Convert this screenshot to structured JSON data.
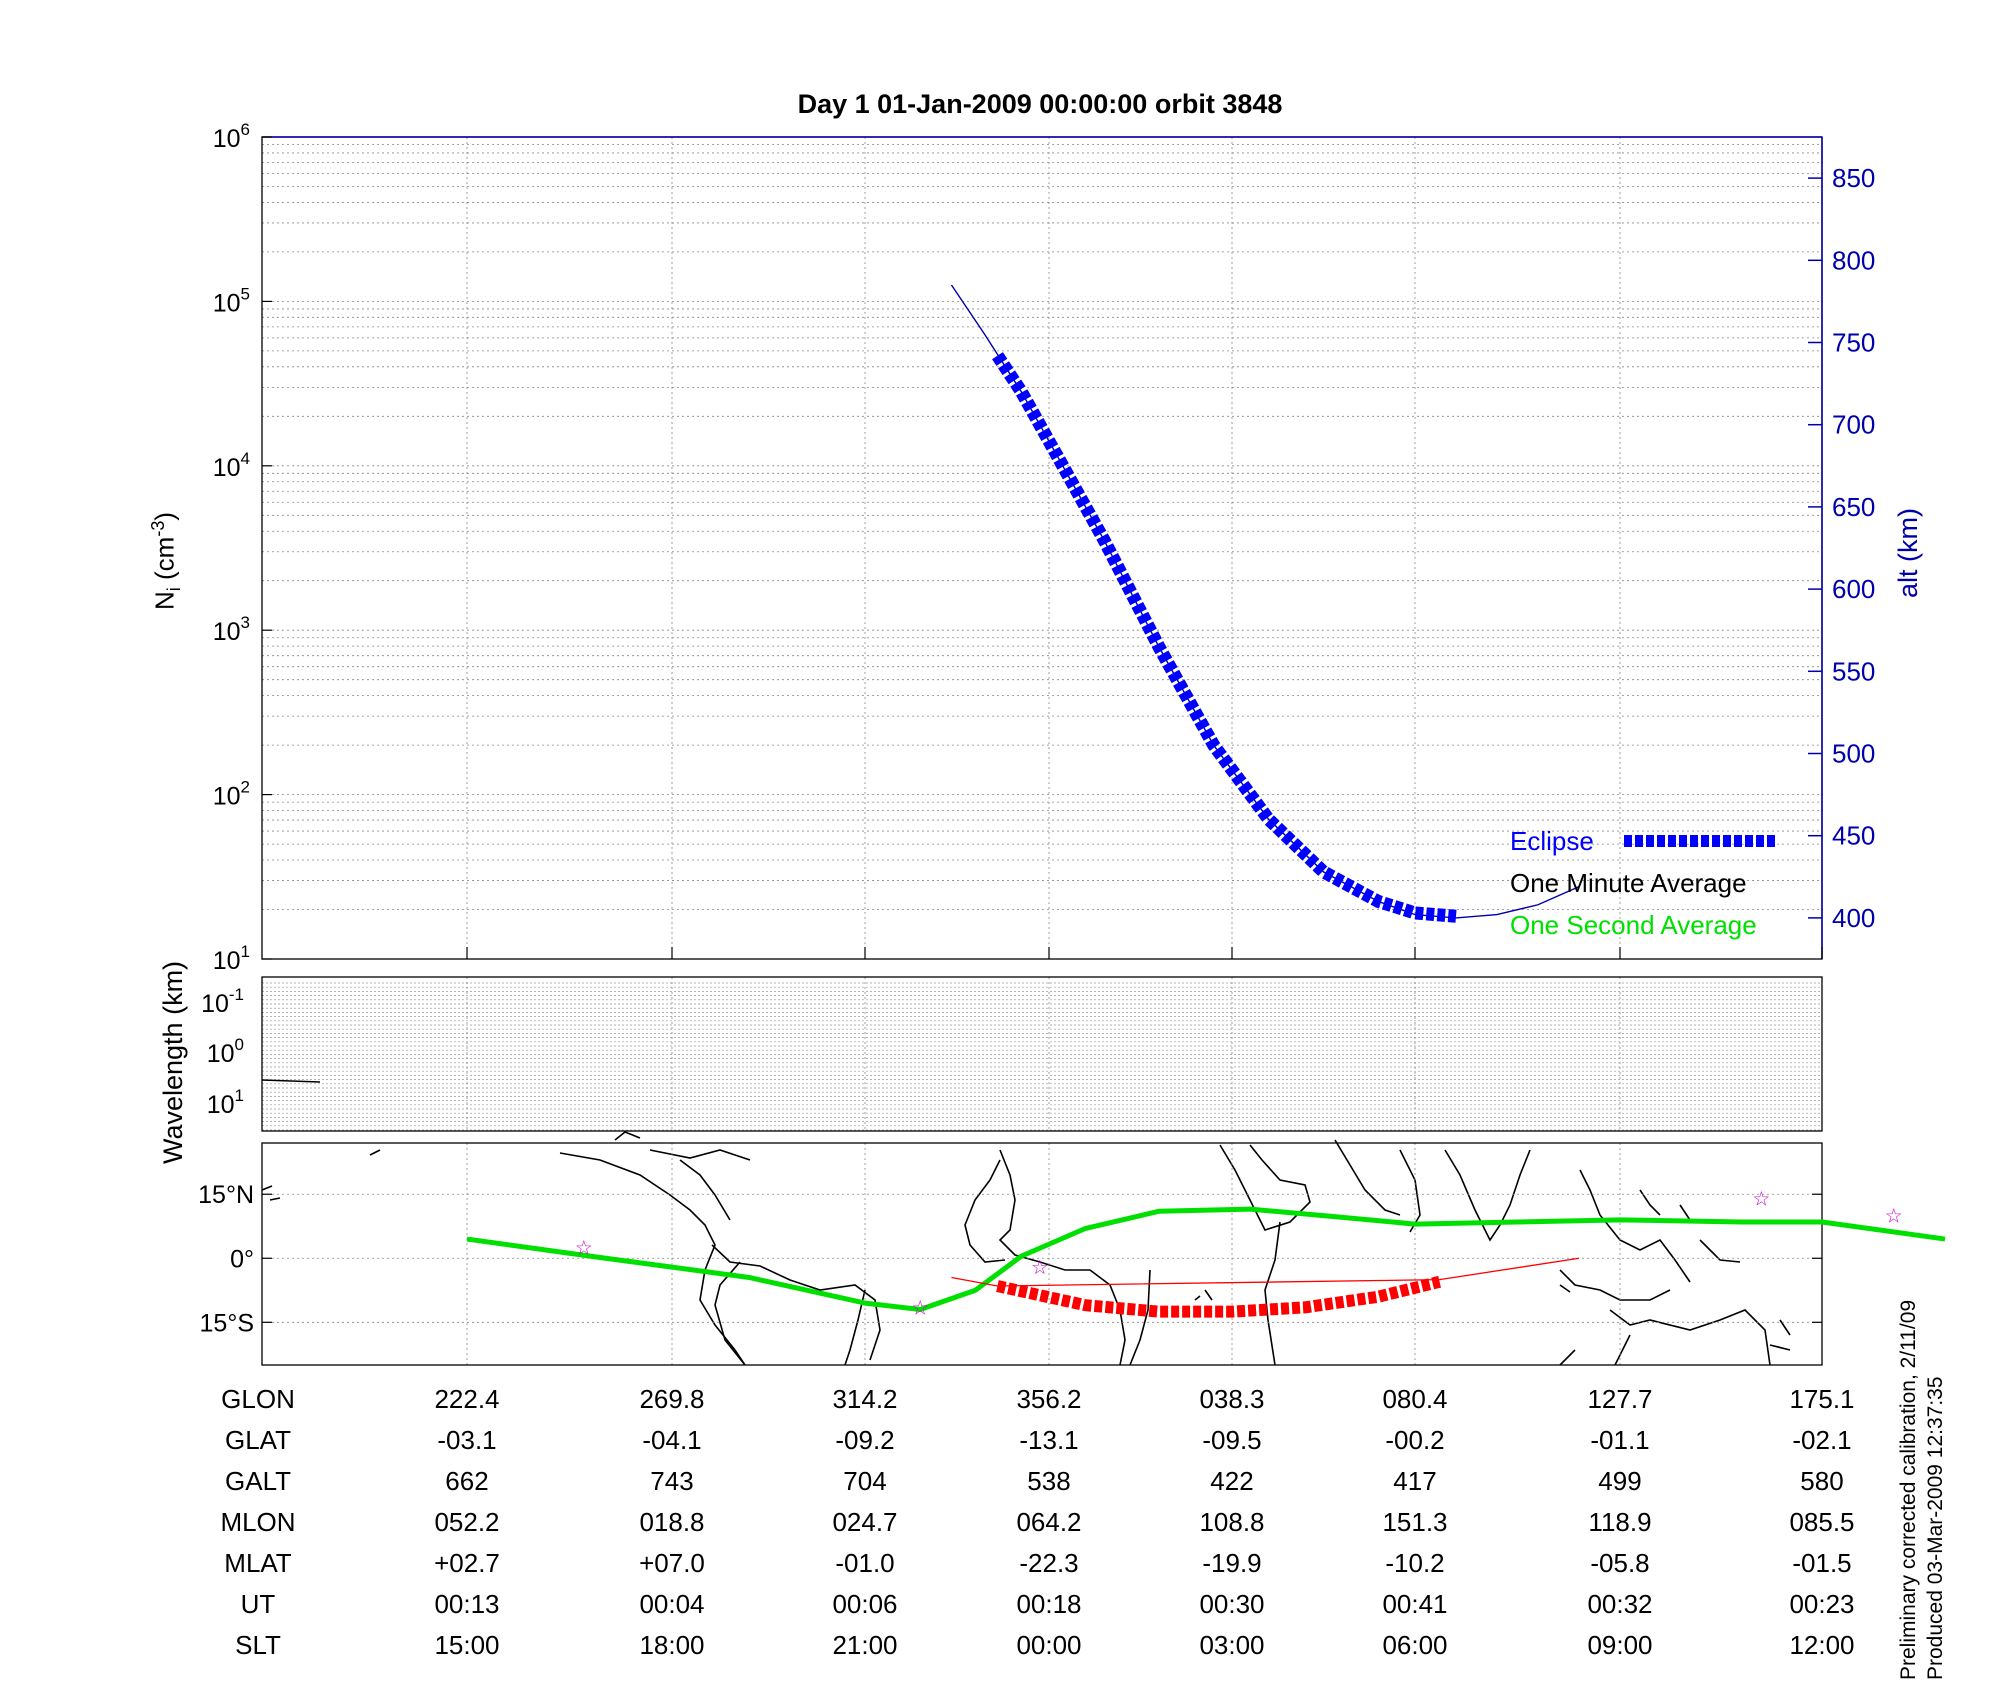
{
  "title": "Day 1  01-Jan-2009 00:00:00   orbit 3848",
  "colors": {
    "eclipse": "#0000ff",
    "one_minute": "#000000",
    "one_second": "#00e000",
    "red_track": "#ff0000",
    "axis_right": "#0000aa"
  },
  "chart_data": [
    {
      "type": "line",
      "panel": "density",
      "ylabel_left_main": "N",
      "ylabel_left_sub": "i",
      "ylabel_left_units_a": " (cm",
      "ylabel_left_units_b": "-3",
      "ylabel_left_units_c": ")",
      "ylabel_right": "alt (km)",
      "yscale": "log",
      "ylim_left": [
        10,
        1000000
      ],
      "yticks_left": [
        {
          "base": "10",
          "exp": "1"
        },
        {
          "base": "10",
          "exp": "2"
        },
        {
          "base": "10",
          "exp": "3"
        },
        {
          "base": "10",
          "exp": "4"
        },
        {
          "base": "10",
          "exp": "5"
        },
        {
          "base": "10",
          "exp": "6"
        }
      ],
      "ylim_right": [
        375,
        875
      ],
      "yticks_right": [
        "400",
        "450",
        "500",
        "550",
        "600",
        "650",
        "700",
        "750",
        "800",
        "850"
      ],
      "x_slt_hours": [
        15,
        18,
        21,
        0,
        3,
        6,
        9,
        12
      ],
      "grid": true,
      "legend_position": "bottom-right",
      "legend": [
        "Eclipse",
        "One Minute Average",
        "One Second Average"
      ],
      "series": [
        {
          "name": "alt (km)",
          "style": "thin blue line",
          "x_pos": [
            2.47,
            2.65,
            2.85,
            3.05,
            3.3,
            3.6,
            3.9,
            4.2,
            4.5,
            4.8,
            5.0,
            5.2,
            5.4,
            5.6,
            5.8
          ],
          "values": [
            785,
            755,
            720,
            680,
            630,
            565,
            505,
            460,
            428,
            410,
            402,
            400,
            402,
            408,
            419
          ]
        },
        {
          "name": "Eclipse",
          "style": "blue dashed thick",
          "x_pos": [
            2.72,
            2.85,
            3.05,
            3.3,
            3.6,
            3.9,
            4.2,
            4.5,
            4.8,
            5.0,
            5.2
          ],
          "values": [
            742,
            720,
            680,
            630,
            565,
            505,
            460,
            428,
            410,
            403,
            401
          ]
        }
      ]
    },
    {
      "type": "heatmap",
      "panel": "wavelength",
      "ylabel": "Wavelength (km)",
      "yticks": [
        {
          "base": "10",
          "exp": "-1"
        },
        {
          "base": "10",
          "exp": "0"
        },
        {
          "base": "10",
          "exp": "1"
        }
      ],
      "values": []
    },
    {
      "type": "line",
      "panel": "map",
      "yticks": [
        "15°N",
        "0°",
        "15°S"
      ],
      "ylim_deg": [
        -25,
        27
      ],
      "series": [
        {
          "name": "One Second Average",
          "style": "green track",
          "x_pos": [
            0,
            0.6,
            1.4,
            2.0,
            2.3,
            2.6,
            2.85,
            3.2,
            3.6,
            4.1,
            4.5,
            5.0,
            5.5,
            6.0,
            6.6,
            7.0,
            7.6
          ],
          "values": [
            4.5,
            0.5,
            -4.5,
            -10.5,
            -12,
            -7.5,
            0.5,
            7,
            11,
            11.5,
            10,
            8,
            8.5,
            9,
            8.5,
            8.5,
            4.5
          ]
        },
        {
          "name": "red thin",
          "style": "thin red line",
          "x_pos": [
            2.47,
            2.72,
            5.12,
            5.8
          ],
          "values": [
            -4.5,
            -6.5,
            -5,
            0
          ]
        },
        {
          "name": "Eclipse track",
          "style": "red dashed thick",
          "x_pos": [
            2.72,
            3.2,
            3.6,
            4.0,
            4.4,
            4.8,
            5.12
          ],
          "values": [
            -6.5,
            -11,
            -12.5,
            -12.5,
            -11.5,
            -9,
            -5.5
          ]
        }
      ],
      "stars": [
        {
          "x_pos": 0.57,
          "lat": 2.5
        },
        {
          "x_pos": 2.3,
          "lat": -11.5
        },
        {
          "x_pos": 2.95,
          "lat": -2
        },
        {
          "x_pos": 6.7,
          "lat": 14
        },
        {
          "x_pos": 7.35,
          "lat": 10
        }
      ]
    },
    {
      "type": "table",
      "panel": "ephemeris",
      "rows": [
        {
          "label": "GLON",
          "values": [
            "222.4",
            "269.8",
            "314.2",
            "356.2",
            "038.3",
            "080.4",
            "127.7",
            "175.1"
          ]
        },
        {
          "label": "GLAT",
          "values": [
            "-03.1",
            "-04.1",
            "-09.2",
            "-13.1",
            "-09.5",
            "-00.2",
            "-01.1",
            "-02.1"
          ]
        },
        {
          "label": "GALT",
          "values": [
            "662",
            "743",
            "704",
            "538",
            "422",
            "417",
            "499",
            "580"
          ]
        },
        {
          "label": "MLON",
          "values": [
            "052.2",
            "018.8",
            "024.7",
            "064.2",
            "108.8",
            "151.3",
            "118.9",
            "085.5"
          ]
        },
        {
          "label": "MLAT",
          "values": [
            "+02.7",
            "+07.0",
            "-01.0",
            "-22.3",
            "-19.9",
            "-10.2",
            "-05.8",
            "-01.5"
          ]
        },
        {
          "label": "UT",
          "values": [
            "00:13",
            "00:04",
            "00:06",
            "00:18",
            "00:30",
            "00:41",
            "00:32",
            "00:23"
          ]
        },
        {
          "label": "SLT",
          "values": [
            "15:00",
            "18:00",
            "21:00",
            "00:00",
            "03:00",
            "06:00",
            "09:00",
            "12:00"
          ]
        }
      ]
    }
  ],
  "footnote": {
    "line1": "Preliminary corrected calibration, 2/11/09",
    "line2": "Produced 03-Mar-2009 12:37:35"
  }
}
